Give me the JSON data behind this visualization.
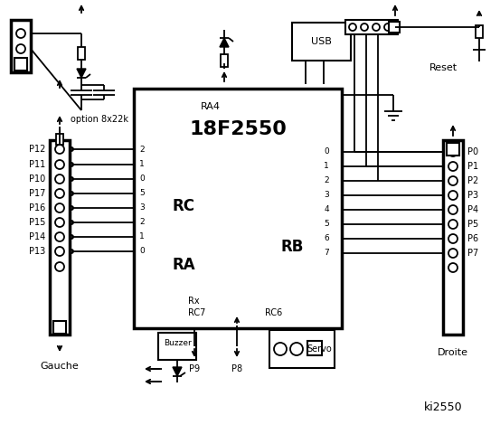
{
  "bg_color": "#ffffff",
  "line_color": "#000000",
  "chip_label": "18F2550",
  "ra4_label": "RA4",
  "rc_label": "RC",
  "ra_label": "RA",
  "rb_label": "RB",
  "rc_left_pins": [
    "2",
    "1",
    "0",
    "5",
    "3",
    "2",
    "1",
    "0"
  ],
  "rc_pin_labels": [
    "P12",
    "P11",
    "P10",
    "P17",
    "P16",
    "P15",
    "P14",
    "P13"
  ],
  "rb_pins": [
    "0",
    "1",
    "2",
    "3",
    "4",
    "5",
    "6",
    "7"
  ],
  "rb_pin_labels": [
    "P0",
    "P1",
    "P2",
    "P3",
    "P4",
    "P5",
    "P6",
    "P7"
  ],
  "buzzer_label": "Buzzer",
  "p9_label": "P9",
  "p8_label": "P8",
  "servo_label": "Servo",
  "left_label": "Gauche",
  "right_label": "Droite",
  "usb_label": "USB",
  "reset_label": "Reset",
  "option_label": "option 8x22k",
  "rx_label": "Rx",
  "rc7_label": "RC7",
  "rc6_label": "RC6",
  "sig_label": "ki2550"
}
